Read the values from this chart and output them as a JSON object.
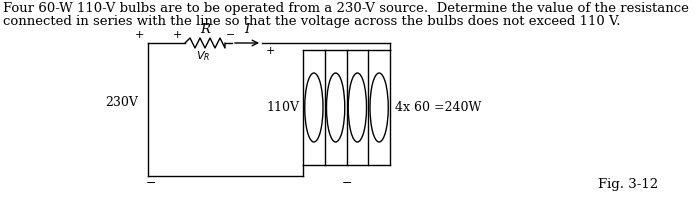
{
  "text_line1": "Four 60-W 110-V bulbs are to be operated from a 230-V source.  Determine the value of the resistance",
  "text_line2": "connected in series with the line so that the voltage across the bulbs does not exceed 110 V.",
  "label_230v": "230V",
  "label_110v": "110V",
  "label_bulbs": "4x 60 =240W",
  "label_fig": "Fig. 3-12",
  "label_R": "R",
  "label_I": "I",
  "bg_color": "#ffffff",
  "line_color": "#000000",
  "font_size_text": 9.5,
  "font_size_labels": 9,
  "font_size_fig": 9.5
}
